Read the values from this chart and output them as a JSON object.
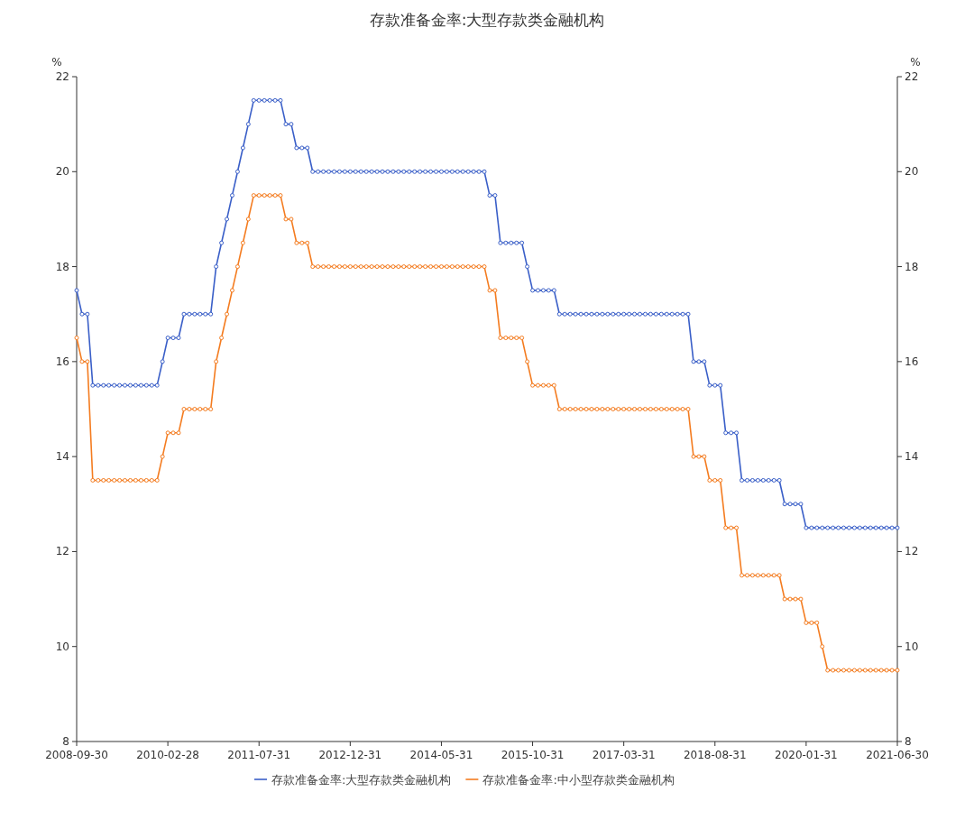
{
  "chart_data": {
    "type": "line",
    "title": "存款准备金率:大型存款类金融机构",
    "ylabel": "%",
    "y2label": "%",
    "xlim": [
      "2008-09",
      "2021-06"
    ],
    "xticks": [
      {
        "value": "2008-09",
        "label": "2008-09-30"
      },
      {
        "value": "2010-02",
        "label": "2010-02-28"
      },
      {
        "value": "2011-07",
        "label": "2011-07-31"
      },
      {
        "value": "2012-12",
        "label": "2012-12-31"
      },
      {
        "value": "2014-05",
        "label": "2014-05-31"
      },
      {
        "value": "2015-10",
        "label": "2015-10-31"
      },
      {
        "value": "2017-03",
        "label": "2017-03-31"
      },
      {
        "value": "2018-08",
        "label": "2018-08-31"
      },
      {
        "value": "2020-01",
        "label": "2020-01-31"
      },
      {
        "value": "2021-06",
        "label": "2021-06-30"
      }
    ],
    "ylim": [
      8,
      22
    ],
    "yticks": [
      8,
      10,
      12,
      14,
      16,
      18,
      20,
      22
    ],
    "y2lim": [
      8,
      22
    ],
    "y2ticks": [
      8,
      10,
      12,
      14,
      16,
      18,
      20,
      22
    ],
    "grid": false,
    "legend": "bottom",
    "marker": "circle",
    "line_style": "solid",
    "x": [
      "2008-09",
      "2008-10",
      "2008-11",
      "2008-12",
      "2009-01",
      "2009-02",
      "2009-03",
      "2009-04",
      "2009-05",
      "2009-06",
      "2009-07",
      "2009-08",
      "2009-09",
      "2009-10",
      "2009-11",
      "2009-12",
      "2010-01",
      "2010-02",
      "2010-03",
      "2010-04",
      "2010-05",
      "2010-06",
      "2010-07",
      "2010-08",
      "2010-09",
      "2010-10",
      "2010-11",
      "2010-12",
      "2011-01",
      "2011-02",
      "2011-03",
      "2011-04",
      "2011-05",
      "2011-06",
      "2011-07",
      "2011-08",
      "2011-09",
      "2011-10",
      "2011-11",
      "2011-12",
      "2012-01",
      "2012-02",
      "2012-03",
      "2012-04",
      "2012-05",
      "2012-06",
      "2012-07",
      "2012-08",
      "2012-09",
      "2012-10",
      "2012-11",
      "2012-12",
      "2013-01",
      "2013-02",
      "2013-03",
      "2013-04",
      "2013-05",
      "2013-06",
      "2013-07",
      "2013-08",
      "2013-09",
      "2013-10",
      "2013-11",
      "2013-12",
      "2014-01",
      "2014-02",
      "2014-03",
      "2014-04",
      "2014-05",
      "2014-06",
      "2014-07",
      "2014-08",
      "2014-09",
      "2014-10",
      "2014-11",
      "2014-12",
      "2015-01",
      "2015-02",
      "2015-03",
      "2015-04",
      "2015-05",
      "2015-06",
      "2015-07",
      "2015-08",
      "2015-09",
      "2015-10",
      "2015-11",
      "2015-12",
      "2016-01",
      "2016-02",
      "2016-03",
      "2016-04",
      "2016-05",
      "2016-06",
      "2016-07",
      "2016-08",
      "2016-09",
      "2016-10",
      "2016-11",
      "2016-12",
      "2017-01",
      "2017-02",
      "2017-03",
      "2017-04",
      "2017-05",
      "2017-06",
      "2017-07",
      "2017-08",
      "2017-09",
      "2017-10",
      "2017-11",
      "2017-12",
      "2018-01",
      "2018-02",
      "2018-03",
      "2018-04",
      "2018-05",
      "2018-06",
      "2018-07",
      "2018-08",
      "2018-09",
      "2018-10",
      "2018-11",
      "2018-12",
      "2019-01",
      "2019-02",
      "2019-03",
      "2019-04",
      "2019-05",
      "2019-06",
      "2019-07",
      "2019-08",
      "2019-09",
      "2019-10",
      "2019-11",
      "2019-12",
      "2020-01",
      "2020-02",
      "2020-03",
      "2020-04",
      "2020-05",
      "2020-06",
      "2020-07",
      "2020-08",
      "2020-09",
      "2020-10",
      "2020-11",
      "2020-12",
      "2021-01",
      "2021-02",
      "2021-03",
      "2021-04",
      "2021-05",
      "2021-06"
    ],
    "series": [
      {
        "name": "存款准备金率:大型存款类金融机构",
        "color": "#3a5fc8",
        "values": [
          17.5,
          17.0,
          17.0,
          15.5,
          15.5,
          15.5,
          15.5,
          15.5,
          15.5,
          15.5,
          15.5,
          15.5,
          15.5,
          15.5,
          15.5,
          15.5,
          16.0,
          16.5,
          16.5,
          16.5,
          17.0,
          17.0,
          17.0,
          17.0,
          17.0,
          17.0,
          18.0,
          18.5,
          19.0,
          19.5,
          20.0,
          20.5,
          21.0,
          21.5,
          21.5,
          21.5,
          21.5,
          21.5,
          21.5,
          21.0,
          21.0,
          20.5,
          20.5,
          20.5,
          20.0,
          20.0,
          20.0,
          20.0,
          20.0,
          20.0,
          20.0,
          20.0,
          20.0,
          20.0,
          20.0,
          20.0,
          20.0,
          20.0,
          20.0,
          20.0,
          20.0,
          20.0,
          20.0,
          20.0,
          20.0,
          20.0,
          20.0,
          20.0,
          20.0,
          20.0,
          20.0,
          20.0,
          20.0,
          20.0,
          20.0,
          20.0,
          20.0,
          19.5,
          19.5,
          18.5,
          18.5,
          18.5,
          18.5,
          18.5,
          18.0,
          17.5,
          17.5,
          17.5,
          17.5,
          17.5,
          17.0,
          17.0,
          17.0,
          17.0,
          17.0,
          17.0,
          17.0,
          17.0,
          17.0,
          17.0,
          17.0,
          17.0,
          17.0,
          17.0,
          17.0,
          17.0,
          17.0,
          17.0,
          17.0,
          17.0,
          17.0,
          17.0,
          17.0,
          17.0,
          17.0,
          16.0,
          16.0,
          16.0,
          15.5,
          15.5,
          15.5,
          14.5,
          14.5,
          14.5,
          13.5,
          13.5,
          13.5,
          13.5,
          13.5,
          13.5,
          13.5,
          13.5,
          13.0,
          13.0,
          13.0,
          13.0,
          12.5,
          12.5,
          12.5,
          12.5,
          12.5,
          12.5,
          12.5,
          12.5,
          12.5,
          12.5,
          12.5,
          12.5,
          12.5,
          12.5,
          12.5,
          12.5,
          12.5,
          12.5
        ]
      },
      {
        "name": "存款准备金率:中小型存款类金融机构",
        "color": "#f47c20",
        "values": [
          16.5,
          16.0,
          16.0,
          13.5,
          13.5,
          13.5,
          13.5,
          13.5,
          13.5,
          13.5,
          13.5,
          13.5,
          13.5,
          13.5,
          13.5,
          13.5,
          14.0,
          14.5,
          14.5,
          14.5,
          15.0,
          15.0,
          15.0,
          15.0,
          15.0,
          15.0,
          16.0,
          16.5,
          17.0,
          17.5,
          18.0,
          18.5,
          19.0,
          19.5,
          19.5,
          19.5,
          19.5,
          19.5,
          19.5,
          19.0,
          19.0,
          18.5,
          18.5,
          18.5,
          18.0,
          18.0,
          18.0,
          18.0,
          18.0,
          18.0,
          18.0,
          18.0,
          18.0,
          18.0,
          18.0,
          18.0,
          18.0,
          18.0,
          18.0,
          18.0,
          18.0,
          18.0,
          18.0,
          18.0,
          18.0,
          18.0,
          18.0,
          18.0,
          18.0,
          18.0,
          18.0,
          18.0,
          18.0,
          18.0,
          18.0,
          18.0,
          18.0,
          17.5,
          17.5,
          16.5,
          16.5,
          16.5,
          16.5,
          16.5,
          16.0,
          15.5,
          15.5,
          15.5,
          15.5,
          15.5,
          15.0,
          15.0,
          15.0,
          15.0,
          15.0,
          15.0,
          15.0,
          15.0,
          15.0,
          15.0,
          15.0,
          15.0,
          15.0,
          15.0,
          15.0,
          15.0,
          15.0,
          15.0,
          15.0,
          15.0,
          15.0,
          15.0,
          15.0,
          15.0,
          15.0,
          14.0,
          14.0,
          14.0,
          13.5,
          13.5,
          13.5,
          12.5,
          12.5,
          12.5,
          11.5,
          11.5,
          11.5,
          11.5,
          11.5,
          11.5,
          11.5,
          11.5,
          11.0,
          11.0,
          11.0,
          11.0,
          10.5,
          10.5,
          10.5,
          10.0,
          9.5,
          9.5,
          9.5,
          9.5,
          9.5,
          9.5,
          9.5,
          9.5,
          9.5,
          9.5,
          9.5,
          9.5,
          9.5,
          9.5
        ]
      }
    ]
  }
}
